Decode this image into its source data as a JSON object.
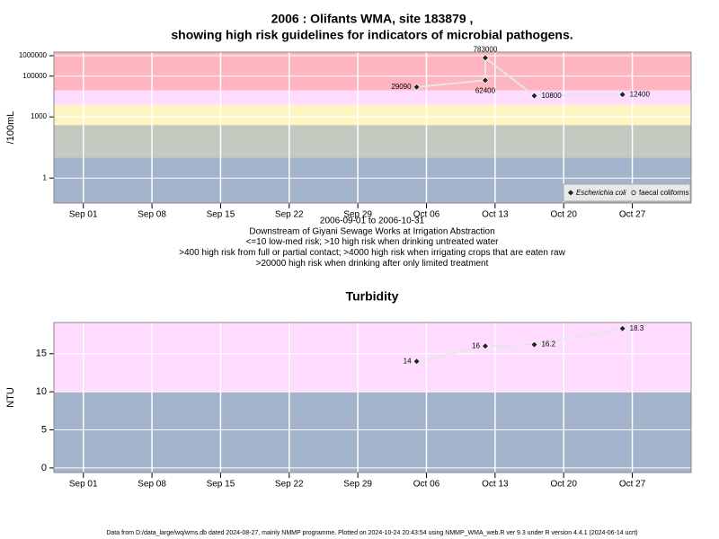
{
  "chart_data": [
    {
      "type": "line",
      "title": "2006 : Olifants WMA, site 183879 ,",
      "subtitle": "showing high risk guidelines for indicators of microbial pathogens.",
      "y_label": "/100mL",
      "log_y": true,
      "xlim": [
        "2006-08-29",
        "2006-11-02"
      ],
      "xticks": [
        {
          "value": "2006-09-01",
          "label": "Sep 01"
        },
        {
          "value": "2006-09-08",
          "label": "Sep 08"
        },
        {
          "value": "2006-09-15",
          "label": "Sep 15"
        },
        {
          "value": "2006-09-22",
          "label": "Sep 22"
        },
        {
          "value": "2006-09-29",
          "label": "Sep 29"
        },
        {
          "value": "2006-10-06",
          "label": "Oct 06"
        },
        {
          "value": "2006-10-13",
          "label": "Oct 13"
        },
        {
          "value": "2006-10-20",
          "label": "Oct 20"
        },
        {
          "value": "2006-10-27",
          "label": "Oct 27"
        }
      ],
      "ylim": [
        0.06,
        1500000
      ],
      "yticks": [
        1,
        1000,
        100000,
        1000000
      ],
      "grid": true,
      "band_edges": [
        10,
        400,
        4000,
        20000
      ],
      "band_colors": [
        "#a3b3cb",
        "#c3cbc1",
        "#fff5c3",
        "#ffdcff",
        "#ffb5c0"
      ],
      "series": [
        {
          "name": "Escherichia coli",
          "color": "#e6e6e6",
          "x": [
            "2006-10-05",
            "2006-10-12",
            "2006-10-12",
            "2006-10-17",
            "2006-10-26"
          ],
          "values": [
            29090,
            62400,
            783000,
            10800,
            12400
          ]
        },
        {
          "name": "faecal coliforms",
          "color": "#e6e6e6",
          "x": [],
          "values": []
        }
      ],
      "legend": "bottom right",
      "notes": [
        "2006-09-01 to 2006-10-31",
        "Downstream of Giyani Sewage Works at Irrigation Abstraction",
        "<=10 low-med risk; >10 high risk when drinking untreated water",
        ">400 high risk from full or partial contact; >4000 high risk when irrigating crops that are eaten raw",
        ">20000 high risk when drinking after only limited treatment"
      ]
    },
    {
      "type": "line",
      "title": "Turbidity",
      "y_label": "NTU",
      "log_y": false,
      "xlim": [
        "2006-08-29",
        "2006-11-02"
      ],
      "xticks": [
        {
          "value": "2006-09-01",
          "label": "Sep 01"
        },
        {
          "value": "2006-09-08",
          "label": "Sep 08"
        },
        {
          "value": "2006-09-15",
          "label": "Sep 15"
        },
        {
          "value": "2006-09-22",
          "label": "Sep 22"
        },
        {
          "value": "2006-09-29",
          "label": "Sep 29"
        },
        {
          "value": "2006-10-06",
          "label": "Oct 06"
        },
        {
          "value": "2006-10-13",
          "label": "Oct 13"
        },
        {
          "value": "2006-10-20",
          "label": "Oct 20"
        },
        {
          "value": "2006-10-27",
          "label": "Oct 27"
        }
      ],
      "ylim": [
        -0.6,
        19.1
      ],
      "yticks": [
        0,
        5,
        10,
        15
      ],
      "grid": true,
      "band_edges": [
        10
      ],
      "band_colors": [
        "#a3b3cb",
        "#ffdcff"
      ],
      "series": [
        {
          "name": "Turbidity",
          "color": "#e6e6e6",
          "x": [
            "2006-10-05",
            "2006-10-12",
            "2006-10-17",
            "2006-10-26"
          ],
          "values": [
            14,
            16,
            16.2,
            18.3
          ]
        }
      ]
    }
  ],
  "footer": "Data from D:/data_large/wq/wms.db dated 2024-08-27, mainly NMMP programme. Plotted on 2024-10-24 20:43:54 using NMMP_WMA_web.R ver 9.3 under R version 4.4.1 (2024-06-14 ucrt)"
}
